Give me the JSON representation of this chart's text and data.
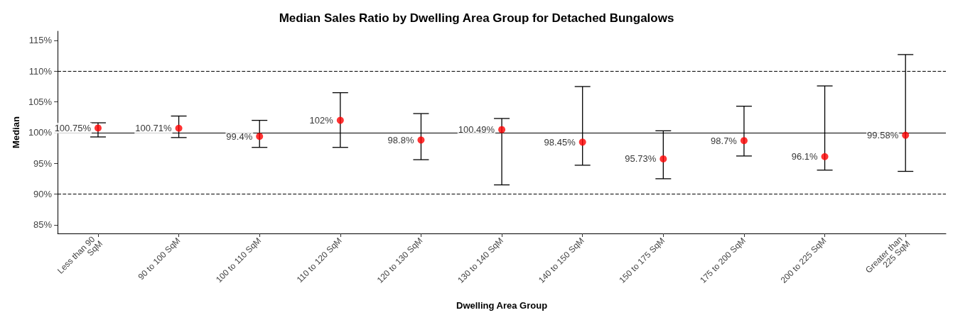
{
  "chart_data": {
    "type": "scatter",
    "title": "Median Sales Ratio by Dwelling Area Group for Detached Bungalows",
    "xlabel": "Dwelling Area Group",
    "ylabel": "Median",
    "categories": [
      "Less than 90 SqM",
      "90 to 100 SqM",
      "100 to 110 SqM",
      "110 to 120 SqM",
      "120 to 130 SqM",
      "130 to 140 SqM",
      "140 to 150 SqM",
      "150 to 175 SqM",
      "175 to 200 SqM",
      "200 to 225 SqM",
      "Greater than 225 SqM"
    ],
    "values": [
      100.75,
      100.71,
      99.4,
      102,
      98.8,
      100.49,
      98.45,
      95.73,
      98.7,
      96.1,
      99.58
    ],
    "value_labels": [
      "100.75%",
      "100.71%",
      "99.4%",
      "102%",
      "98.8%",
      "100.49%",
      "98.45%",
      "95.73%",
      "98.7%",
      "96.1%",
      "99.58%"
    ],
    "errors": [
      [
        99.3,
        101.6
      ],
      [
        99.2,
        102.7
      ],
      [
        97.6,
        102
      ],
      [
        97.6,
        106.5
      ],
      [
        95.6,
        103.1
      ],
      [
        91.5,
        102.3
      ],
      [
        94.7,
        107.5
      ],
      [
        92.5,
        100.3
      ],
      [
        96.2,
        104.3
      ],
      [
        93.9,
        107.6
      ],
      [
        93.7,
        112.7
      ]
    ],
    "color": "#ff0000",
    "marker": "circle",
    "grid": false,
    "ylim": [
      83.6,
      116.5
    ],
    "yticks": [
      {
        "value": 85,
        "label": "85%"
      },
      {
        "value": 90,
        "label": "90%"
      },
      {
        "value": 95,
        "label": "95%"
      },
      {
        "value": 100,
        "label": "100%"
      },
      {
        "value": 105,
        "label": "105%"
      },
      {
        "value": 110,
        "label": "110%"
      },
      {
        "value": 115,
        "label": "115%"
      }
    ],
    "ref_lines": [
      {
        "axis": "y",
        "value": 110,
        "line_style": "dashed",
        "color": "#000000"
      },
      {
        "axis": "y",
        "value": 90,
        "line_style": "dashed",
        "color": "#000000"
      },
      {
        "axis": "y",
        "value": 100,
        "line_style": "solid",
        "color": "#000000"
      }
    ]
  }
}
